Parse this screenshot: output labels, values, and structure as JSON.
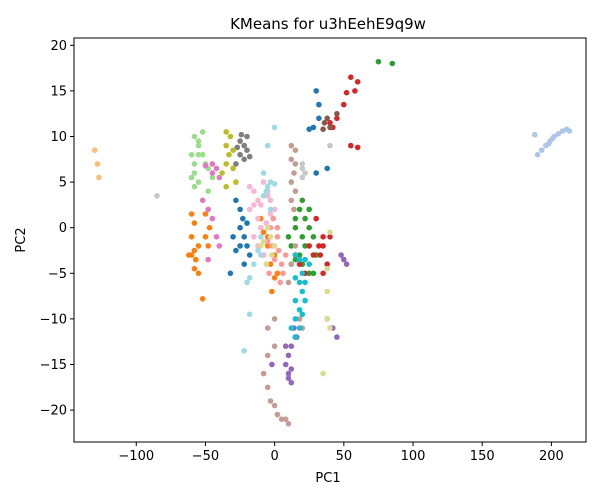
{
  "chart_data": {
    "type": "scatter",
    "title": "KMeans for u3hEehE9q9w",
    "xlabel": "PC1",
    "ylabel": "PC2",
    "xlim": [
      -145,
      225
    ],
    "ylim": [
      -23.5,
      20.8
    ],
    "xticks": [
      -100,
      -50,
      0,
      50,
      100,
      150,
      200
    ],
    "yticks": [
      -20,
      -15,
      -10,
      -5,
      0,
      5,
      10,
      15,
      20
    ],
    "xtick_labels": [
      "−100",
      "−50",
      "0",
      "50",
      "100",
      "150",
      "200"
    ],
    "ytick_labels": [
      "−20",
      "−15",
      "−10",
      "−5",
      "0",
      "5",
      "10",
      "15",
      "20"
    ],
    "grid": false,
    "legend": "none",
    "series": [
      {
        "color": "#1f77b4",
        "points": [
          [
            30,
            15
          ],
          [
            28,
            11
          ],
          [
            32,
            13.5
          ],
          [
            32,
            12
          ],
          [
            25,
            10.8
          ],
          [
            30,
            6
          ],
          [
            38,
            6.5
          ],
          [
            -28,
            3
          ],
          [
            -25,
            2
          ],
          [
            -23,
            1
          ],
          [
            -25,
            0
          ],
          [
            -20,
            0.5
          ],
          [
            -22,
            -1
          ],
          [
            -20,
            -2
          ],
          [
            -25,
            -2
          ],
          [
            -28,
            -2.5
          ],
          [
            -32,
            -5
          ],
          [
            -30,
            -1
          ],
          [
            -18,
            -3
          ],
          [
            -22,
            -4
          ]
        ]
      },
      {
        "color": "#aec7e8",
        "points": [
          [
            188,
            10.2
          ],
          [
            190,
            8
          ],
          [
            193,
            8.5
          ],
          [
            196,
            9
          ],
          [
            199,
            9.5
          ],
          [
            202,
            10
          ],
          [
            205,
            10.3
          ],
          [
            208,
            10.6
          ],
          [
            211,
            10.8
          ],
          [
            213,
            10.6
          ],
          [
            198,
            9.2
          ],
          [
            201,
            9.8
          ]
        ]
      },
      {
        "color": "#ff7f0e",
        "points": [
          [
            -60,
            1.5
          ],
          [
            -58,
            0.5
          ],
          [
            -60,
            -1
          ],
          [
            -55,
            -2
          ],
          [
            -57,
            -3.5
          ],
          [
            -60,
            -3
          ],
          [
            -62,
            -3
          ],
          [
            -58,
            -4.5
          ],
          [
            -55,
            -5
          ],
          [
            -52,
            -7.8
          ],
          [
            -50,
            -1
          ],
          [
            -48,
            -2
          ],
          [
            -50,
            1.5
          ],
          [
            -47,
            0
          ],
          [
            -58,
            -2.5
          ],
          [
            -10,
            1
          ],
          [
            -8,
            -0.5
          ],
          [
            -5,
            -1
          ],
          [
            -5,
            -2
          ],
          [
            -8,
            -3
          ],
          [
            -3,
            -4
          ],
          [
            0,
            -3
          ],
          [
            2,
            -5
          ],
          [
            0,
            -5.5
          ],
          [
            -2,
            -7
          ]
        ]
      },
      {
        "color": "#ffbb78",
        "points": [
          [
            -130,
            8.5
          ],
          [
            -128,
            7
          ],
          [
            -127,
            5.5
          ]
        ]
      },
      {
        "color": "#2ca02c",
        "points": [
          [
            75,
            18.2
          ],
          [
            85,
            18
          ],
          [
            20,
            3
          ],
          [
            18,
            2
          ],
          [
            22,
            1
          ],
          [
            25,
            0
          ],
          [
            20,
            -1
          ],
          [
            22,
            -2
          ],
          [
            18,
            -3
          ],
          [
            15,
            -3.5
          ],
          [
            20,
            -4
          ],
          [
            25,
            -5
          ],
          [
            15,
            0
          ],
          [
            15,
            1
          ],
          [
            10,
            -1
          ],
          [
            12,
            -2
          ],
          [
            25,
            2
          ],
          [
            28,
            -1
          ],
          [
            30,
            -3
          ],
          [
            12,
            -4
          ],
          [
            28,
            -5
          ]
        ]
      },
      {
        "color": "#98df8a",
        "points": [
          [
            -58,
            10
          ],
          [
            -55,
            9.5
          ],
          [
            -52,
            10.5
          ],
          [
            -55,
            8
          ],
          [
            -58,
            7
          ],
          [
            -60,
            5.5
          ],
          [
            -55,
            5
          ],
          [
            -58,
            4.5
          ],
          [
            -52,
            8
          ],
          [
            -50,
            7
          ],
          [
            -48,
            6.5
          ],
          [
            -45,
            5.5
          ],
          [
            -48,
            4
          ],
          [
            -55,
            9
          ],
          [
            -60,
            8
          ],
          [
            -58,
            6
          ]
        ]
      },
      {
        "color": "#d62728",
        "points": [
          [
            60,
            16
          ],
          [
            55,
            16.5
          ],
          [
            58,
            15
          ],
          [
            52,
            14.8
          ],
          [
            50,
            13.5
          ],
          [
            45,
            12
          ],
          [
            40,
            11.5
          ],
          [
            42,
            11
          ],
          [
            55,
            9
          ],
          [
            60,
            8.8
          ],
          [
            30,
            1
          ],
          [
            35,
            -1
          ],
          [
            32,
            -2
          ],
          [
            28,
            -3
          ],
          [
            35,
            -5
          ],
          [
            38,
            -4
          ],
          [
            33,
            -3
          ],
          [
            25,
            -2
          ],
          [
            15,
            -3
          ],
          [
            18,
            -4
          ],
          [
            22,
            -5
          ],
          [
            35,
            -2
          ],
          [
            40,
            -1
          ]
        ]
      },
      {
        "color": "#ff9896",
        "points": [
          [
            -5,
            -1.5
          ],
          [
            -2,
            -2
          ],
          [
            0,
            -3.5
          ],
          [
            2,
            -1
          ],
          [
            -3,
            0
          ],
          [
            -1,
            1
          ],
          [
            2,
            0
          ],
          [
            3,
            -2.5
          ],
          [
            5,
            -4
          ],
          [
            6,
            -5
          ],
          [
            4,
            -6
          ],
          [
            8,
            -3
          ],
          [
            -4,
            -5
          ]
        ]
      },
      {
        "color": "#9467bd",
        "points": [
          [
            48,
            -3
          ],
          [
            50,
            -3.5
          ],
          [
            52,
            -4
          ],
          [
            45,
            -12
          ],
          [
            42,
            -11
          ],
          [
            38,
            -10
          ],
          [
            15,
            -12
          ],
          [
            12,
            -13
          ],
          [
            10,
            -14
          ],
          [
            8,
            -15
          ],
          [
            10,
            -16
          ],
          [
            12,
            -17
          ],
          [
            8,
            -13
          ],
          [
            -2,
            -15
          ],
          [
            14,
            -11
          ],
          [
            16,
            -12
          ],
          [
            12,
            -15.5
          ],
          [
            10,
            -16.5
          ]
        ]
      },
      {
        "color": "#c5b0d5",
        "points": []
      },
      {
        "color": "#8c564b",
        "points": [
          [
            35,
            10.8
          ],
          [
            38,
            12
          ],
          [
            36,
            11.5
          ],
          [
            40,
            11
          ],
          [
            45,
            12.5
          ]
        ]
      },
      {
        "color": "#c49c94",
        "points": [
          [
            12,
            9
          ],
          [
            15,
            8.5
          ],
          [
            12,
            7.5
          ],
          [
            15,
            7
          ],
          [
            14,
            6
          ],
          [
            12,
            5
          ],
          [
            15,
            4
          ],
          [
            12,
            3
          ],
          [
            14,
            2
          ],
          [
            15,
            -2
          ],
          [
            12,
            -4
          ],
          [
            10,
            -6
          ],
          [
            0,
            -10
          ],
          [
            -5,
            -11
          ],
          [
            0,
            -13
          ],
          [
            -5,
            -14
          ],
          [
            -8,
            -16
          ],
          [
            -5,
            -17.5
          ],
          [
            -3,
            -19
          ],
          [
            0,
            -19.5
          ],
          [
            2,
            -20.5
          ],
          [
            5,
            -21
          ],
          [
            8,
            -21
          ],
          [
            10,
            -21.5
          ],
          [
            18,
            -10
          ],
          [
            20,
            -11
          ]
        ]
      },
      {
        "color": "#e377c2",
        "points": [
          [
            -50,
            6.8
          ],
          [
            -45,
            7
          ],
          [
            -42,
            6.5
          ],
          [
            -45,
            6
          ],
          [
            -40,
            5.5
          ],
          [
            -48,
            2
          ],
          [
            -45,
            1
          ],
          [
            -42,
            -1
          ],
          [
            -40,
            -2
          ],
          [
            -48,
            -3.5
          ],
          [
            -52,
            3
          ]
        ]
      },
      {
        "color": "#f7b6d2",
        "points": [
          [
            -18,
            4.5
          ],
          [
            -15,
            4
          ],
          [
            -12,
            3
          ],
          [
            -15,
            2.5
          ],
          [
            -18,
            2
          ],
          [
            -12,
            1
          ],
          [
            -8,
            5
          ],
          [
            -5,
            4
          ],
          [
            -3,
            3
          ],
          [
            0,
            2
          ],
          [
            -10,
            0
          ],
          [
            -15,
            -1
          ],
          [
            -12,
            -2
          ],
          [
            -8,
            -3
          ],
          [
            -5,
            3.5
          ],
          [
            -10,
            2.5
          ],
          [
            -3,
            1.5
          ],
          [
            -6,
            0.5
          ]
        ]
      },
      {
        "color": "#7f7f7f",
        "points": [
          [
            -25,
            9.5
          ],
          [
            -22,
            9
          ],
          [
            -20,
            10
          ],
          [
            -25,
            8
          ],
          [
            -22,
            7.5
          ],
          [
            -28,
            7
          ],
          [
            -20,
            8.5
          ],
          [
            -18,
            7.8
          ],
          [
            -24,
            10.2
          ],
          [
            -27,
            8.8
          ]
        ]
      },
      {
        "color": "#c7c7c7",
        "points": [
          [
            -85,
            3.5
          ],
          [
            20,
            7
          ],
          [
            20,
            6.5
          ],
          [
            22,
            6
          ],
          [
            20,
            5.5
          ],
          [
            40,
            9
          ]
        ]
      },
      {
        "color": "#bcbd22",
        "points": [
          [
            -35,
            10.5
          ],
          [
            -32,
            10
          ],
          [
            -35,
            9
          ],
          [
            -30,
            8.5
          ],
          [
            -33,
            8
          ],
          [
            -35,
            7
          ],
          [
            -30,
            6.5
          ],
          [
            -38,
            6
          ],
          [
            -28,
            5
          ],
          [
            -35,
            4.5
          ]
        ]
      },
      {
        "color": "#dbdb8d",
        "points": [
          [
            -5,
            0
          ],
          [
            -3,
            -1
          ],
          [
            0,
            -2
          ],
          [
            -2,
            -3
          ],
          [
            -8,
            -1.5
          ],
          [
            -6,
            -4
          ],
          [
            -10,
            -2
          ],
          [
            40,
            -0.5
          ],
          [
            38,
            -4.5
          ],
          [
            38,
            -7
          ],
          [
            38,
            -10
          ],
          [
            40,
            -11
          ],
          [
            35,
            -16
          ]
        ]
      },
      {
        "color": "#17becf",
        "points": [
          [
            15,
            -3
          ],
          [
            18,
            -3.5
          ],
          [
            22,
            -3.5
          ],
          [
            20,
            -5
          ],
          [
            15,
            -5.5
          ],
          [
            18,
            -6
          ],
          [
            20,
            -7
          ],
          [
            15,
            -8
          ],
          [
            18,
            -9
          ],
          [
            15,
            -10
          ],
          [
            20,
            -9.5
          ],
          [
            22,
            -8
          ],
          [
            12,
            -11
          ],
          [
            15,
            -12
          ],
          [
            18,
            -11
          ],
          [
            22,
            -6
          ],
          [
            25,
            -4
          ]
        ]
      },
      {
        "color": "#9edae5",
        "points": [
          [
            0,
            11
          ],
          [
            -5,
            9
          ],
          [
            -8,
            6
          ],
          [
            -5,
            4.5
          ],
          [
            -8,
            3.5
          ],
          [
            -3,
            2
          ],
          [
            -10,
            -1
          ],
          [
            -15,
            -4
          ],
          [
            -18,
            -5.5
          ],
          [
            -20,
            -6
          ],
          [
            -18,
            -9.5
          ],
          [
            -22,
            -13.5
          ],
          [
            -3,
            5
          ],
          [
            -6,
            4
          ],
          [
            0,
            4.8
          ],
          [
            -10,
            -3
          ],
          [
            -12,
            -2.5
          ]
        ]
      }
    ]
  }
}
